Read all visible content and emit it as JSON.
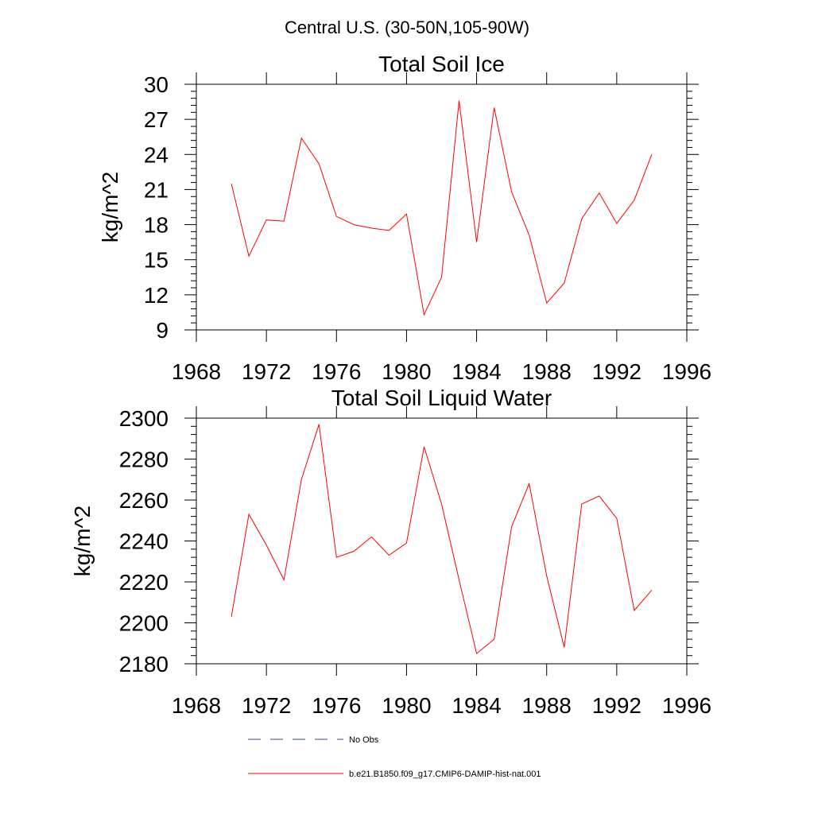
{
  "suptitle": "Central U.S. (30-50N,105-90W)",
  "legend": {
    "items": [
      {
        "label": "No Obs",
        "color": "#3a4a8c",
        "style": "dashed"
      },
      {
        "label": "b.e21.B1850.f09_g17.CMIP6-DAMIP-hist-nat.001",
        "color": "#ff0000",
        "style": "solid"
      }
    ]
  },
  "chart_data": [
    {
      "type": "line",
      "title": "Total Soil Ice",
      "xlabel": "",
      "ylabel": "kg/m^2",
      "xlim": [
        1968,
        1996
      ],
      "ylim": [
        9,
        30
      ],
      "xticks": [
        1968,
        1972,
        1976,
        1980,
        1984,
        1988,
        1992,
        1996
      ],
      "yticks": [
        9,
        12,
        15,
        18,
        21,
        24,
        27,
        30
      ],
      "grid": false,
      "series": [
        {
          "name": "b.e21.B1850.f09_g17.CMIP6-DAMIP-hist-nat.001",
          "color": "#ff0000",
          "x": [
            1970,
            1971,
            1972,
            1973,
            1974,
            1975,
            1976,
            1977,
            1978,
            1979,
            1980,
            1981,
            1982,
            1983,
            1984,
            1985,
            1986,
            1987,
            1988,
            1989,
            1990,
            1991,
            1992,
            1993,
            1994
          ],
          "y": [
            21.5,
            15.3,
            18.4,
            18.3,
            25.4,
            23.2,
            18.7,
            18.0,
            17.7,
            17.5,
            18.9,
            10.3,
            13.5,
            28.6,
            16.5,
            28.0,
            20.8,
            17.1,
            11.3,
            13.0,
            18.5,
            20.7,
            18.1,
            20.1,
            24.0
          ]
        }
      ]
    },
    {
      "type": "line",
      "title": "Total Soil Liquid Water",
      "xlabel": "",
      "ylabel": "kg/m^2",
      "xlim": [
        1968,
        1996
      ],
      "ylim": [
        2180,
        2300
      ],
      "xticks": [
        1968,
        1972,
        1976,
        1980,
        1984,
        1988,
        1992,
        1996
      ],
      "yticks": [
        2180,
        2200,
        2220,
        2240,
        2260,
        2280,
        2300
      ],
      "grid": false,
      "series": [
        {
          "name": "b.e21.B1850.f09_g17.CMIP6-DAMIP-hist-nat.001",
          "color": "#ff0000",
          "x": [
            1970,
            1971,
            1972,
            1973,
            1974,
            1975,
            1976,
            1977,
            1978,
            1979,
            1980,
            1981,
            1982,
            1983,
            1984,
            1985,
            1986,
            1987,
            1988,
            1989,
            1990,
            1991,
            1992,
            1993,
            1994
          ],
          "y": [
            2203,
            2253,
            2238,
            2221,
            2270,
            2297,
            2232,
            2235,
            2242,
            2233,
            2239,
            2286,
            2258,
            2221,
            2185,
            2192,
            2247,
            2268,
            2223,
            2188,
            2258,
            2262,
            2251,
            2206,
            2216
          ]
        }
      ]
    }
  ]
}
